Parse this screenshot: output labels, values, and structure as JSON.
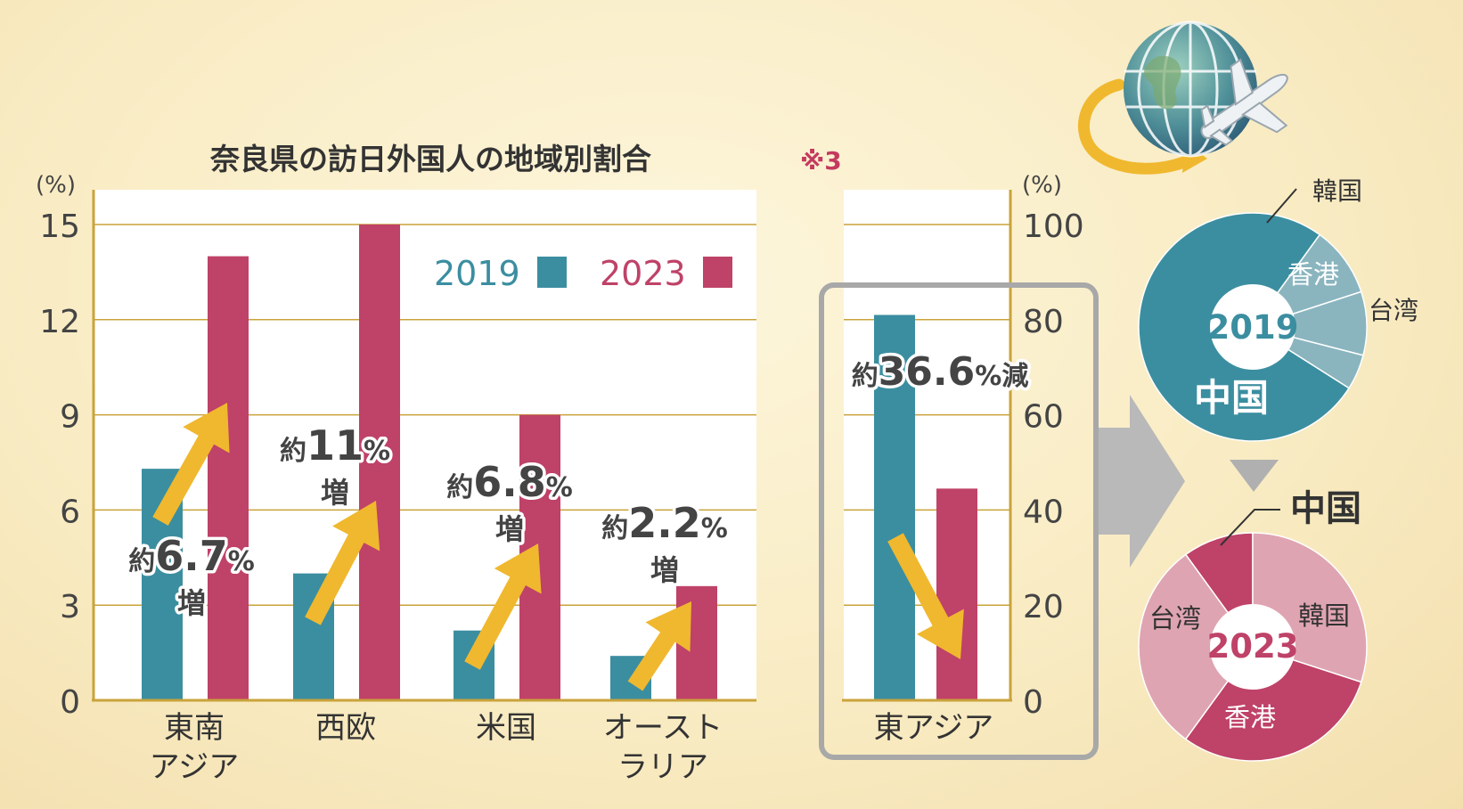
{
  "title": "奈良県の訪日外国人の地域別割合",
  "title_note": "※3",
  "colors": {
    "c2019": "#3b8ea0",
    "c2023": "#bf4268",
    "arrow": "#f0b82e",
    "grid": "#c9a33a",
    "pie2023_light": "#dfa4b2",
    "pie2019_light": "#8ab5bf"
  },
  "chart_data": [
    {
      "type": "bar",
      "title": "奈良県の訪日外国人の地域別割合",
      "ylabel": "(%)",
      "ylim": [
        0,
        15
      ],
      "yticks": [
        "0",
        "3",
        "6",
        "9",
        "12",
        "15"
      ],
      "categories": [
        "東南\nアジア",
        "西欧",
        "米国",
        "オースト\nラリア"
      ],
      "series": [
        {
          "name": "2019",
          "values": [
            7.3,
            4.0,
            2.2,
            1.4
          ]
        },
        {
          "name": "2023",
          "values": [
            14.0,
            15.0,
            9.0,
            3.6
          ]
        }
      ],
      "legend": [
        "2019",
        "2023"
      ],
      "annotations": [
        {
          "prefix": "約",
          "value": "6.7",
          "unit": "%",
          "suffix": "増"
        },
        {
          "prefix": "約",
          "value": "11",
          "unit": "%",
          "suffix": "増"
        },
        {
          "prefix": "約",
          "value": "6.8",
          "unit": "%",
          "suffix": "増"
        },
        {
          "prefix": "約",
          "value": "2.2",
          "unit": "%",
          "suffix": "増"
        }
      ]
    },
    {
      "type": "bar",
      "ylabel": "(%)",
      "ylim": [
        0,
        100
      ],
      "yticks": [
        "0",
        "20",
        "40",
        "60",
        "80",
        "100"
      ],
      "categories": [
        "東アジア"
      ],
      "series": [
        {
          "name": "2019",
          "values": [
            81
          ]
        },
        {
          "name": "2023",
          "values": [
            44.5
          ]
        }
      ],
      "annotation": {
        "prefix": "約",
        "value": "36.6",
        "unit": "%",
        "suffix": "減"
      }
    },
    {
      "type": "pie",
      "center_label": "2019",
      "slices": [
        {
          "label": "中国",
          "value": 76
        },
        {
          "label": "台湾",
          "value": 10
        },
        {
          "label": "香港",
          "value": 9
        },
        {
          "label": "韓国",
          "value": 5
        }
      ]
    },
    {
      "type": "pie",
      "center_label": "2023",
      "slices": [
        {
          "label": "中国",
          "value": 10
        },
        {
          "label": "韓国",
          "value": 30
        },
        {
          "label": "香港",
          "value": 30
        },
        {
          "label": "台湾",
          "value": 30
        }
      ]
    }
  ]
}
